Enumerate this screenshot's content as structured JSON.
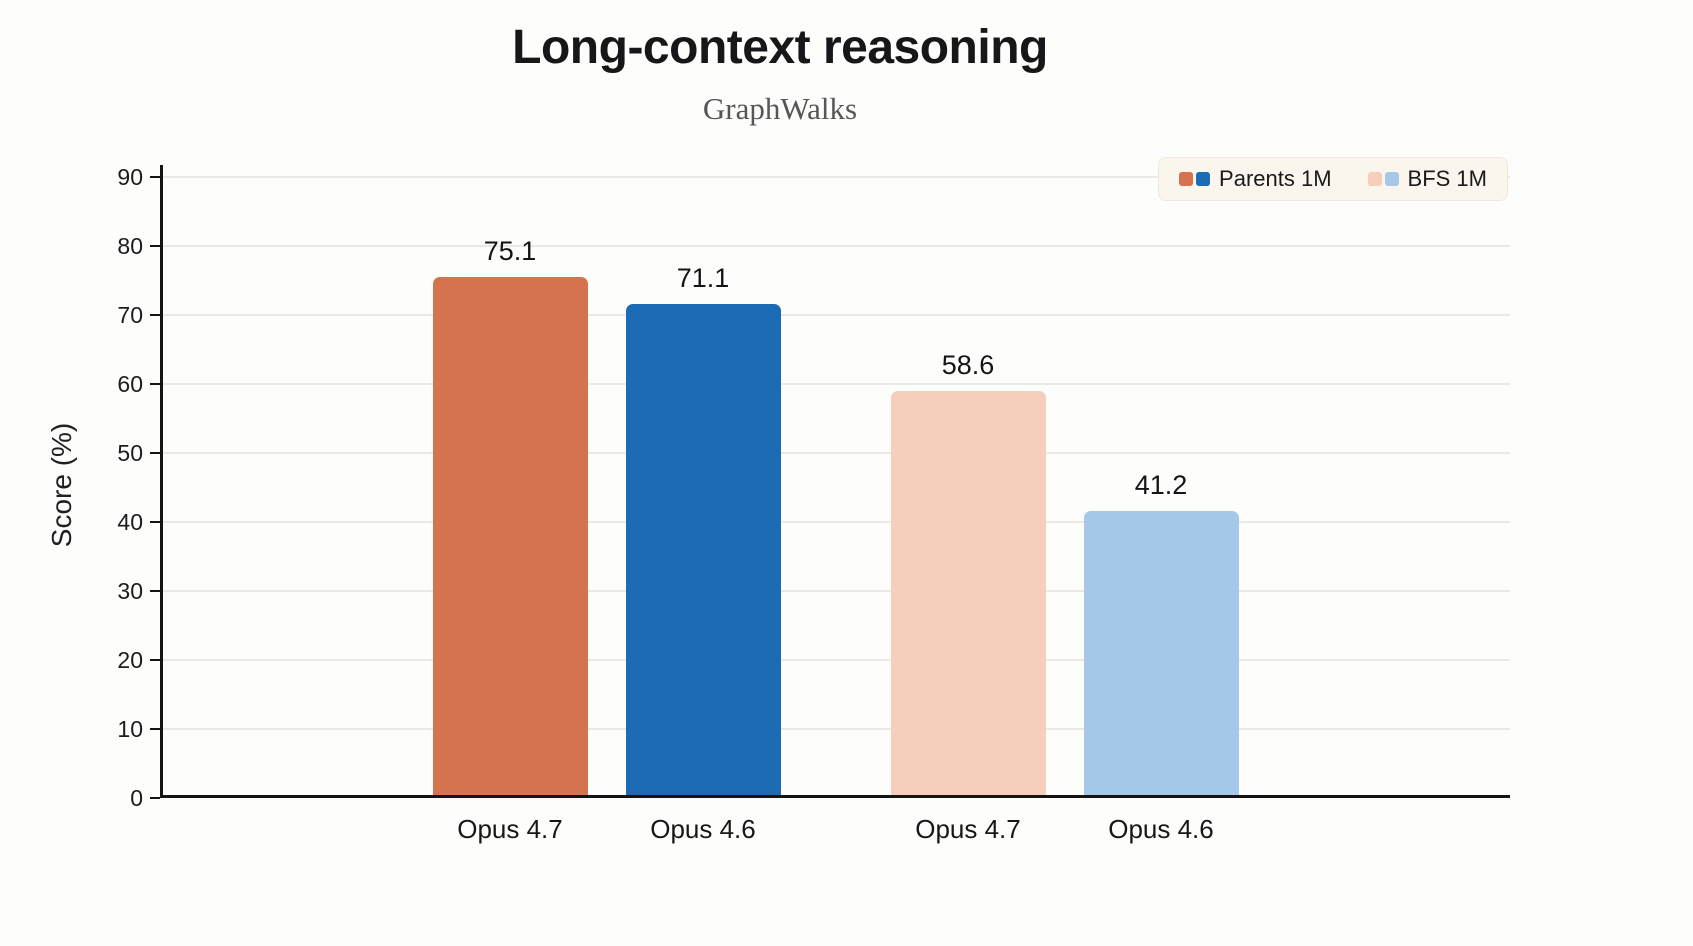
{
  "header": {
    "title": "Long-context reasoning",
    "subtitle": "GraphWalks"
  },
  "chart_data": {
    "type": "bar",
    "title": "Long-context reasoning",
    "subtitle": "GraphWalks",
    "xlabel": "",
    "ylabel": "Score (%)",
    "ylim": [
      0,
      90
    ],
    "yticks": [
      0,
      10,
      20,
      30,
      40,
      50,
      60,
      70,
      80,
      90
    ],
    "grid": true,
    "legend_position": "top-right",
    "legend": [
      {
        "label": "Parents 1M",
        "colors": [
          "#D4734D",
          "#1B6CB5"
        ]
      },
      {
        "label": "BFS 1M",
        "colors": [
          "#F6CEBC",
          "#A5C8E9"
        ]
      }
    ],
    "bars": [
      {
        "category": "Opus 4.7",
        "series": "Parents 1M",
        "value": 75.1,
        "value_label": "75.1",
        "color": "#D4734D"
      },
      {
        "category": "Opus 4.6",
        "series": "Parents 1M",
        "value": 71.1,
        "value_label": "71.1",
        "color": "#1B6CB5"
      },
      {
        "category": "Opus 4.7",
        "series": "BFS 1M",
        "value": 58.6,
        "value_label": "58.6",
        "color": "#F6CEBC"
      },
      {
        "category": "Opus 4.6",
        "series": "BFS 1M",
        "value": 41.2,
        "value_label": "41.2",
        "color": "#A5C8E9"
      }
    ]
  },
  "colors": {
    "axis": "#141414",
    "gridline": "#ECE9E4",
    "legend_bg": "#FAF5ED",
    "legend_border": "#EFE8DD",
    "title_text": "#17171A",
    "subtitle_text": "#55565A"
  }
}
